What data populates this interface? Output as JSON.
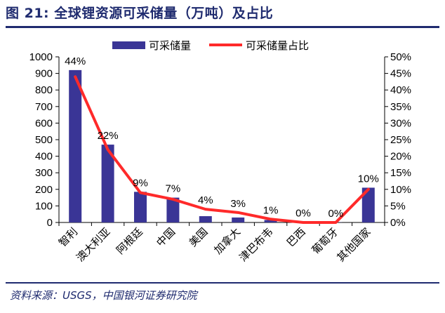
{
  "figure": {
    "title": "图 21:  全球锂资源可采储量（万吨）及占比",
    "source": "资料来源：USGS，中国银河证券研究院"
  },
  "chart_data": {
    "type": "bar",
    "categories": [
      "智利",
      "澳大利亚",
      "阿根廷",
      "中国",
      "美国",
      "加拿大",
      "津巴布韦",
      "巴西",
      "葡萄牙",
      "其他国家"
    ],
    "series": [
      {
        "name": "可采储量",
        "type": "bar",
        "axis": "left",
        "color": "#3a3596",
        "values": [
          920,
          470,
          185,
          150,
          38,
          30,
          15,
          2,
          1,
          210
        ]
      },
      {
        "name": "可采储量占比",
        "type": "line",
        "axis": "right",
        "color": "#ff2a2a",
        "values": [
          44,
          22,
          9,
          7,
          4,
          3,
          1,
          0,
          0,
          10
        ]
      }
    ],
    "data_labels": [
      "44%",
      "22%",
      "9%",
      "7%",
      "4%",
      "3%",
      "1%",
      "0%",
      "0%",
      "10%"
    ],
    "y_left": {
      "min": 0,
      "max": 1000,
      "step": 100,
      "ticks": [
        "0",
        "100",
        "200",
        "300",
        "400",
        "500",
        "600",
        "700",
        "800",
        "900",
        "1000"
      ]
    },
    "y_right": {
      "min": 0,
      "max": 50,
      "step": 5,
      "ticks": [
        "0%",
        "5%",
        "10%",
        "15%",
        "20%",
        "25%",
        "30%",
        "35%",
        "40%",
        "45%",
        "50%"
      ]
    },
    "legend_position": "top",
    "grid": false
  }
}
